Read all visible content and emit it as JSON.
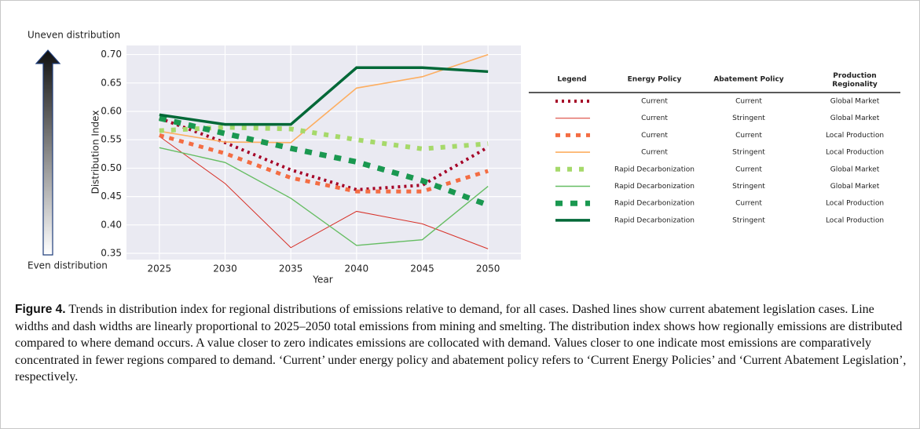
{
  "chart_data": {
    "type": "line",
    "x_label": "Year",
    "y_label": "Distribution Index",
    "annotation_top": "Uneven distribution",
    "annotation_bottom": "Even distribution",
    "x": [
      2025,
      2030,
      2035,
      2040,
      2045,
      2050
    ],
    "xlim": [
      2022.5,
      2052.5
    ],
    "xticks": [
      2025,
      2030,
      2035,
      2040,
      2045,
      2050
    ],
    "ylim": [
      0.339,
      0.716
    ],
    "yticks": [
      0.35,
      {
        "value": 0.4,
        "label": "0.40"
      },
      0.45,
      {
        "value": 0.5,
        "label": "0.50"
      },
      0.55,
      {
        "value": 0.6,
        "label": "0.60"
      },
      0.65,
      {
        "value": 0.7,
        "label": "0.70"
      }
    ],
    "grid": true,
    "legend_headers": [
      "Legend",
      "Energy Policy",
      "Abatement Policy",
      "Production Regionality"
    ],
    "series": [
      {
        "energy_policy": "Current",
        "abatement_policy": "Current",
        "regionality": "Global Market",
        "color": "#a50026",
        "line_width": 4,
        "dash": "3 5",
        "values": [
          0.588,
          0.545,
          0.497,
          0.462,
          0.47,
          0.537
        ]
      },
      {
        "energy_policy": "Current",
        "abatement_policy": "Stringent",
        "regionality": "Global Market",
        "color": "#d73027",
        "line_width": 1,
        "dash": "none",
        "values": [
          0.556,
          0.473,
          0.36,
          0.424,
          0.402,
          0.358
        ]
      },
      {
        "energy_policy": "Current",
        "abatement_policy": "Current",
        "regionality": "Local Production",
        "color": "#f46d43",
        "line_width": 5,
        "dash": "6 7",
        "values": [
          0.558,
          0.526,
          0.483,
          0.459,
          0.459,
          0.495
        ]
      },
      {
        "energy_policy": "Current",
        "abatement_policy": "Stringent",
        "regionality": "Local Production",
        "color": "#fdae61",
        "line_width": 1.6,
        "dash": "none",
        "values": [
          0.565,
          0.546,
          0.545,
          0.641,
          0.661,
          0.7
        ]
      },
      {
        "energy_policy": "Rapid Decarbonization",
        "abatement_policy": "Current",
        "regionality": "Global Market",
        "color": "#a6d96a",
        "line_width": 6,
        "dash": "6 9",
        "values": [
          0.566,
          0.572,
          0.569,
          0.55,
          0.534,
          0.543
        ]
      },
      {
        "energy_policy": "Rapid Decarbonization",
        "abatement_policy": "Stringent",
        "regionality": "Global Market",
        "color": "#66bd63",
        "line_width": 1.4,
        "dash": "none",
        "values": [
          0.536,
          0.51,
          0.447,
          0.364,
          0.374,
          0.468
        ]
      },
      {
        "energy_policy": "Rapid Decarbonization",
        "abatement_policy": "Current",
        "regionality": "Local Production",
        "color": "#1a9850",
        "line_width": 7,
        "dash": "9 10",
        "values": [
          0.588,
          0.561,
          0.535,
          0.511,
          0.478,
          0.435
        ]
      },
      {
        "energy_policy": "Rapid Decarbonization",
        "abatement_policy": "Stringent",
        "regionality": "Local Production",
        "color": "#006837",
        "line_width": 3.5,
        "dash": "none",
        "values": [
          0.594,
          0.577,
          0.577,
          0.677,
          0.677,
          0.67
        ]
      }
    ]
  },
  "caption": {
    "label": "Figure 4.",
    "text": "Trends in distribution index for regional distributions of emissions relative to demand, for all cases. Dashed lines show current abatement legislation cases. Line widths and dash widths are linearly proportional to 2025–2050 total emissions from mining and smelting. The distribution index shows how regionally emissions are distributed compared to where demand occurs. A value closer to zero indicates emissions are collocated with demand. Values closer to one indicate most emissions are comparatively concentrated in fewer regions compared to demand. ‘Current’ under energy policy and abatement policy refers to ‘Current Energy Policies’ and ‘Current Abatement Legislation’, respectively."
  }
}
